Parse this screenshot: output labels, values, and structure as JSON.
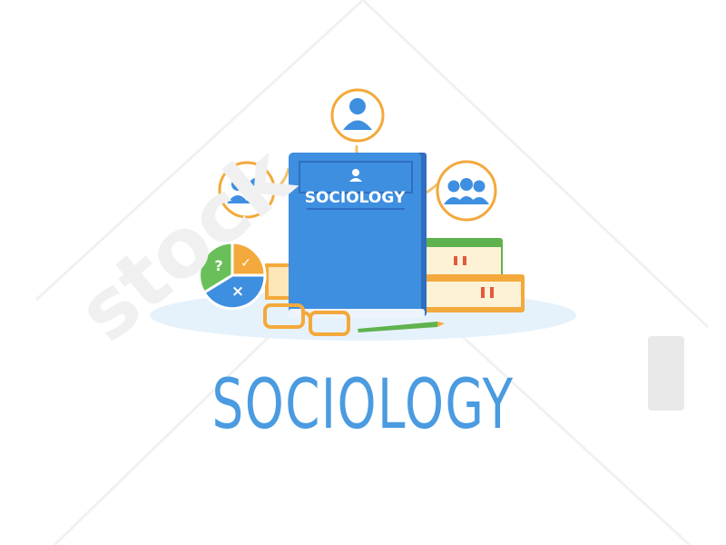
{
  "illustration": {
    "book_title": "SOCIOLOGY",
    "caption": "SOCIOLOGY",
    "chart_symbols": {
      "question": "?",
      "check": "✓",
      "cross": "×"
    },
    "watermark_text": "stock",
    "icons": [
      "single-person-icon",
      "two-people-icon",
      "three-people-icon",
      "pie-chart-icon",
      "book-icon",
      "glasses-icon",
      "pencil-icon"
    ]
  },
  "colors": {
    "book_blue": "#3f8fe0",
    "book_spine": "#2f6ec0",
    "accent_orange": "#f3a93b",
    "accent_green": "#69c05a",
    "accent_red": "#e35a3a",
    "platform": "#e6f2fb"
  }
}
